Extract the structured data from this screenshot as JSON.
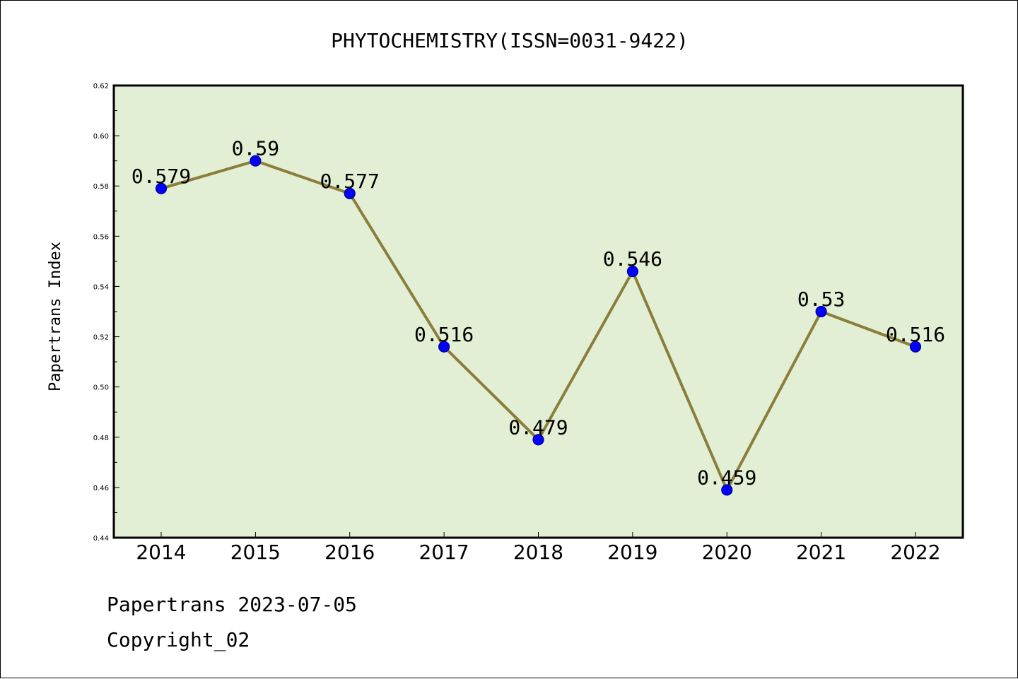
{
  "chart_data": {
    "type": "line",
    "title": "PHYTOCHEMISTRY(ISSN=0031-9422)",
    "xlabel": "",
    "ylabel": "Papertrans Index",
    "categories": [
      "2014",
      "2015",
      "2016",
      "2017",
      "2018",
      "2019",
      "2020",
      "2021",
      "2022"
    ],
    "series": [
      {
        "values": [
          0.579,
          0.59,
          0.577,
          0.516,
          0.479,
          0.546,
          0.459,
          0.53,
          0.516
        ]
      }
    ],
    "data_labels": [
      "0.579",
      "0.59",
      "0.577",
      "0.516",
      "0.479",
      "0.546",
      "0.459",
      "0.53",
      "0.516"
    ],
    "ylim": [
      0.44,
      0.62
    ],
    "yticks": [
      "0.44",
      "0.46",
      "0.48",
      "0.50",
      "0.52",
      "0.54",
      "0.56",
      "0.58",
      "0.60",
      "0.62"
    ],
    "grid": false,
    "colors": {
      "plot_background": "#e2efd4",
      "line": "#8b7d3a",
      "marker_fill": "#0000ff",
      "marker_edge": "#00008b"
    }
  },
  "footer": {
    "source": "Papertrans 2023-07-05",
    "copyright": "Copyright_02"
  }
}
